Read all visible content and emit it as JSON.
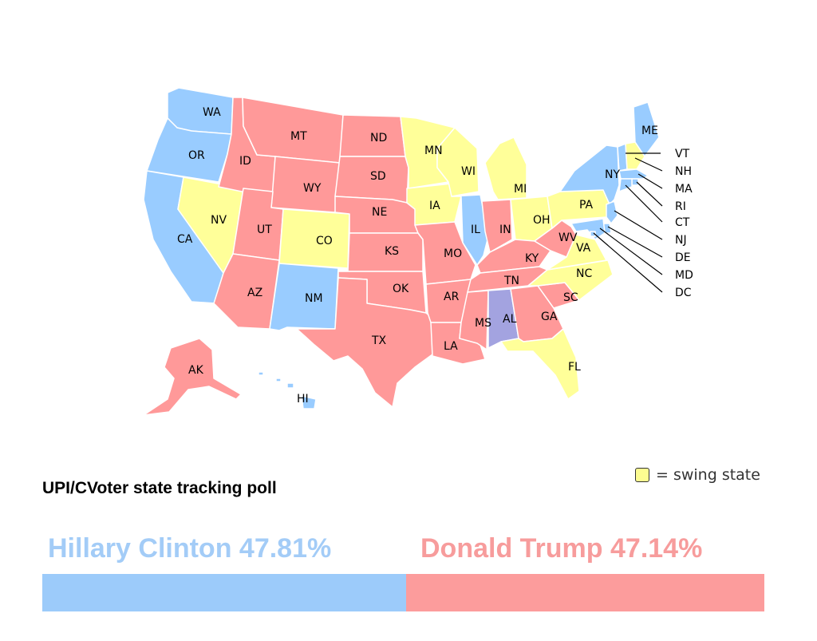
{
  "colors": {
    "dem": "#99ccff",
    "rep": "#ff9999",
    "swing": "#ffff99",
    "alabama": "#a3a3e0",
    "border": "#ffffff"
  },
  "states": [
    {
      "code": "WA",
      "party": "dem"
    },
    {
      "code": "OR",
      "party": "dem"
    },
    {
      "code": "CA",
      "party": "dem"
    },
    {
      "code": "NV",
      "party": "swing"
    },
    {
      "code": "ID",
      "party": "rep"
    },
    {
      "code": "MT",
      "party": "rep"
    },
    {
      "code": "WY",
      "party": "rep"
    },
    {
      "code": "UT",
      "party": "rep"
    },
    {
      "code": "AZ",
      "party": "rep"
    },
    {
      "code": "CO",
      "party": "swing"
    },
    {
      "code": "NM",
      "party": "dem"
    },
    {
      "code": "ND",
      "party": "rep"
    },
    {
      "code": "SD",
      "party": "rep"
    },
    {
      "code": "NE",
      "party": "rep"
    },
    {
      "code": "KS",
      "party": "rep"
    },
    {
      "code": "OK",
      "party": "rep"
    },
    {
      "code": "TX",
      "party": "rep"
    },
    {
      "code": "MN",
      "party": "swing"
    },
    {
      "code": "IA",
      "party": "swing"
    },
    {
      "code": "MO",
      "party": "rep"
    },
    {
      "code": "AR",
      "party": "rep"
    },
    {
      "code": "LA",
      "party": "rep"
    },
    {
      "code": "WI",
      "party": "swing"
    },
    {
      "code": "IL",
      "party": "dem"
    },
    {
      "code": "MI",
      "party": "swing"
    },
    {
      "code": "IN",
      "party": "rep"
    },
    {
      "code": "OH",
      "party": "swing"
    },
    {
      "code": "KY",
      "party": "rep"
    },
    {
      "code": "TN",
      "party": "rep"
    },
    {
      "code": "MS",
      "party": "rep"
    },
    {
      "code": "AL",
      "party": "alabama"
    },
    {
      "code": "GA",
      "party": "rep"
    },
    {
      "code": "FL",
      "party": "swing"
    },
    {
      "code": "SC",
      "party": "rep"
    },
    {
      "code": "NC",
      "party": "swing"
    },
    {
      "code": "VA",
      "party": "swing"
    },
    {
      "code": "WV",
      "party": "rep"
    },
    {
      "code": "PA",
      "party": "swing"
    },
    {
      "code": "NY",
      "party": "dem"
    },
    {
      "code": "ME",
      "party": "dem"
    },
    {
      "code": "VT",
      "party": "dem"
    },
    {
      "code": "NH",
      "party": "swing"
    },
    {
      "code": "MA",
      "party": "dem"
    },
    {
      "code": "RI",
      "party": "dem"
    },
    {
      "code": "CT",
      "party": "dem"
    },
    {
      "code": "NJ",
      "party": "dem"
    },
    {
      "code": "DE",
      "party": "dem"
    },
    {
      "code": "MD",
      "party": "dem"
    },
    {
      "code": "DC",
      "party": "dem"
    },
    {
      "code": "AK",
      "party": "rep"
    },
    {
      "code": "HI",
      "party": "dem"
    }
  ],
  "legend": {
    "label": "= swing state"
  },
  "poll": {
    "title": "UPI/CVoter state tracking poll",
    "candidate_a": {
      "name": "Hillary Clinton 47.81%",
      "share": 47.81,
      "color": "#99ccff"
    },
    "candidate_b": {
      "name": "Donald Trump 47.14%",
      "share": 47.14,
      "color": "#ff9999"
    }
  }
}
